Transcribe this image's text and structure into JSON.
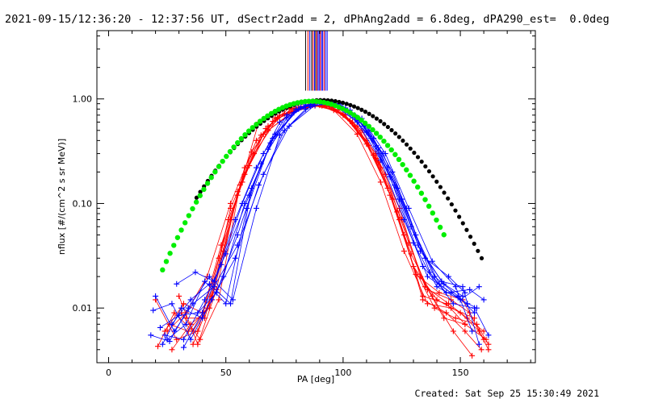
{
  "header": {
    "title": "2021-09-15/12:36:20 - 12:37:56 UT, dSectr2add = 2, dPhAng2add = 6.8deg, dPA290_est=  0.0deg"
  },
  "footer": {
    "created": "Created: Sat Sep 25 15:30:49 2021"
  },
  "chart_data": {
    "type": "line",
    "xlabel": "PA [deg]",
    "ylabel": "nflux [#/(cm^2 s sr MeV)]",
    "xlim": [
      -5,
      182
    ],
    "ylim": [
      0.003,
      4.5
    ],
    "yscale": "log",
    "x_ticks": [
      0,
      50,
      100,
      150
    ],
    "x_tick_labels": [
      "0",
      "50",
      "100",
      "150"
    ],
    "y_ticks": [
      0.01,
      0.1,
      1.0
    ],
    "y_tick_labels": [
      "0.01",
      "0.10",
      "1.00"
    ],
    "grid": false,
    "colors": {
      "red": "#ff0000",
      "blue": "#0000ff",
      "green": "#00ee00",
      "black": "#000000"
    },
    "vertical_markers": {
      "y_range": [
        1.2,
        4.5
      ],
      "lines": [
        {
          "x": 84.0,
          "color": "black"
        },
        {
          "x": 85.0,
          "color": "red"
        },
        {
          "x": 85.8,
          "color": "blue"
        },
        {
          "x": 86.6,
          "color": "black"
        },
        {
          "x": 87.2,
          "color": "red"
        },
        {
          "x": 87.8,
          "color": "blue"
        },
        {
          "x": 88.3,
          "color": "black"
        },
        {
          "x": 88.8,
          "color": "red"
        },
        {
          "x": 89.3,
          "color": "blue"
        },
        {
          "x": 89.8,
          "color": "blue"
        },
        {
          "x": 90.3,
          "color": "red"
        },
        {
          "x": 90.8,
          "color": "blue"
        },
        {
          "x": 91.3,
          "color": "blue"
        },
        {
          "x": 91.9,
          "color": "red"
        },
        {
          "x": 92.5,
          "color": "blue"
        },
        {
          "x": 93.2,
          "color": "blue"
        }
      ]
    },
    "series": [
      {
        "color": "red",
        "x": [
          21,
          28,
          36,
          44,
          55,
          64,
          74,
          86,
          94,
          104,
          114,
          124,
          134,
          144,
          152
        ],
        "values": [
          0.0043,
          0.009,
          0.006,
          0.012,
          0.12,
          0.6,
          0.79,
          0.85,
          0.87,
          0.58,
          0.27,
          0.07,
          0.013,
          0.011,
          0.007
        ]
      },
      {
        "color": "red",
        "x": [
          24,
          32,
          40,
          48,
          58,
          68,
          80,
          90,
          100,
          110,
          120,
          130,
          140,
          150,
          158
        ],
        "values": [
          0.006,
          0.011,
          0.009,
          0.04,
          0.19,
          0.5,
          0.8,
          0.87,
          0.7,
          0.4,
          0.12,
          0.025,
          0.012,
          0.009,
          0.006
        ]
      },
      {
        "color": "red",
        "x": [
          30,
          38,
          46,
          55,
          66,
          78,
          88,
          98,
          108,
          118,
          128,
          136,
          146,
          154,
          162
        ],
        "values": [
          0.013,
          0.0045,
          0.015,
          0.13,
          0.46,
          0.74,
          0.86,
          0.79,
          0.5,
          0.19,
          0.042,
          0.015,
          0.012,
          0.009,
          0.004
        ]
      },
      {
        "color": "red",
        "x": [
          27,
          35,
          43,
          52,
          62,
          72,
          84,
          93,
          103,
          113,
          123,
          131,
          141,
          151,
          160
        ],
        "values": [
          0.004,
          0.007,
          0.01,
          0.09,
          0.3,
          0.65,
          0.84,
          0.87,
          0.62,
          0.29,
          0.083,
          0.021,
          0.014,
          0.012,
          0.005
        ]
      },
      {
        "color": "red",
        "x": [
          33,
          41,
          49,
          58,
          68,
          78,
          88,
          96,
          106,
          116,
          126,
          134,
          144,
          152,
          159
        ],
        "values": [
          0.008,
          0.008,
          0.035,
          0.22,
          0.55,
          0.8,
          0.88,
          0.83,
          0.55,
          0.22,
          0.05,
          0.012,
          0.009,
          0.006,
          0.004
        ]
      },
      {
        "color": "red",
        "x": [
          36,
          44,
          52,
          61,
          71,
          82,
          92,
          101,
          111,
          121,
          130,
          139,
          148,
          157,
          162
        ],
        "values": [
          0.0045,
          0.013,
          0.07,
          0.31,
          0.66,
          0.85,
          0.88,
          0.7,
          0.36,
          0.11,
          0.025,
          0.01,
          0.008,
          0.007,
          0.0045
        ]
      },
      {
        "color": "red",
        "x": [
          20,
          29,
          38,
          47,
          57,
          67,
          77,
          87,
          96,
          106,
          116,
          126,
          136,
          146,
          156
        ],
        "values": [
          0.012,
          0.005,
          0.006,
          0.03,
          0.16,
          0.52,
          0.82,
          0.87,
          0.78,
          0.46,
          0.16,
          0.035,
          0.011,
          0.01,
          0.008
        ]
      },
      {
        "color": "red",
        "x": [
          26,
          34,
          42,
          51,
          60,
          70,
          80,
          91,
          100,
          110,
          119,
          129,
          138,
          147,
          155
        ],
        "values": [
          0.007,
          0.006,
          0.01,
          0.07,
          0.23,
          0.61,
          0.8,
          0.86,
          0.72,
          0.37,
          0.14,
          0.033,
          0.013,
          0.006,
          0.0035
        ]
      },
      {
        "color": "red",
        "x": [
          25,
          33,
          42,
          52,
          63,
          73,
          85,
          94,
          104,
          114,
          124,
          133,
          143,
          152,
          161
        ],
        "values": [
          0.006,
          0.009,
          0.02,
          0.1,
          0.4,
          0.7,
          0.85,
          0.87,
          0.6,
          0.3,
          0.09,
          0.02,
          0.008,
          0.007,
          0.005
        ]
      },
      {
        "color": "red",
        "x": [
          31,
          39,
          47,
          56,
          65,
          75,
          86,
          95,
          105,
          115,
          125,
          135,
          145,
          153,
          160
        ],
        "values": [
          0.009,
          0.005,
          0.012,
          0.15,
          0.45,
          0.72,
          0.85,
          0.84,
          0.55,
          0.25,
          0.07,
          0.016,
          0.011,
          0.008,
          0.006
        ]
      },
      {
        "color": "blue",
        "x": [
          18,
          26,
          34,
          43,
          53,
          63,
          73,
          84,
          93,
          103,
          113,
          123,
          133,
          143,
          151
        ],
        "values": [
          0.0055,
          0.0048,
          0.01,
          0.02,
          0.012,
          0.09,
          0.45,
          0.8,
          0.93,
          0.78,
          0.42,
          0.14,
          0.035,
          0.017,
          0.013
        ]
      },
      {
        "color": "blue",
        "x": [
          22,
          30,
          38,
          46,
          55,
          65,
          76,
          87,
          96,
          106,
          116,
          126,
          136,
          146,
          153
        ],
        "values": [
          0.0065,
          0.0085,
          0.009,
          0.014,
          0.05,
          0.24,
          0.66,
          0.92,
          0.88,
          0.6,
          0.26,
          0.07,
          0.02,
          0.014,
          0.011
        ]
      },
      {
        "color": "blue",
        "x": [
          25,
          33,
          41,
          50,
          59,
          69,
          80,
          90,
          100,
          110,
          120,
          130,
          140,
          150,
          157
        ],
        "values": [
          0.005,
          0.007,
          0.018,
          0.011,
          0.09,
          0.38,
          0.8,
          0.93,
          0.8,
          0.48,
          0.18,
          0.042,
          0.016,
          0.012,
          0.01
        ]
      },
      {
        "color": "blue",
        "x": [
          29,
          37,
          45,
          54,
          63,
          73,
          84,
          94,
          104,
          114,
          124,
          134,
          144,
          154,
          160
        ],
        "values": [
          0.017,
          0.022,
          0.018,
          0.07,
          0.22,
          0.6,
          0.88,
          0.92,
          0.7,
          0.35,
          0.11,
          0.025,
          0.014,
          0.015,
          0.012
        ]
      },
      {
        "color": "blue",
        "x": [
          20,
          28,
          36,
          45,
          55,
          66,
          77,
          88,
          98,
          108,
          118,
          128,
          138,
          148,
          155
        ],
        "values": [
          0.013,
          0.006,
          0.011,
          0.016,
          0.04,
          0.19,
          0.55,
          0.87,
          0.9,
          0.65,
          0.3,
          0.09,
          0.028,
          0.016,
          0.006
        ]
      },
      {
        "color": "blue",
        "x": [
          23,
          31,
          40,
          49,
          58,
          68,
          79,
          89,
          99,
          109,
          119,
          129,
          139,
          149,
          156
        ],
        "values": [
          0.0045,
          0.01,
          0.008,
          0.02,
          0.1,
          0.33,
          0.74,
          0.93,
          0.86,
          0.55,
          0.22,
          0.06,
          0.02,
          0.013,
          0.009
        ]
      },
      {
        "color": "blue",
        "x": [
          27,
          35,
          43,
          52,
          61,
          71,
          82,
          92,
          102,
          112,
          122,
          132,
          142,
          151,
          158
        ],
        "values": [
          0.007,
          0.012,
          0.017,
          0.011,
          0.14,
          0.46,
          0.84,
          0.94,
          0.76,
          0.42,
          0.15,
          0.04,
          0.018,
          0.016,
          0.0045
        ]
      },
      {
        "color": "blue",
        "x": [
          32,
          40,
          48,
          57,
          66,
          76,
          87,
          97,
          107,
          117,
          127,
          137,
          147,
          156,
          162
        ],
        "values": [
          0.0042,
          0.009,
          0.026,
          0.1,
          0.3,
          0.7,
          0.92,
          0.9,
          0.62,
          0.3,
          0.09,
          0.022,
          0.011,
          0.01,
          0.0055
        ]
      },
      {
        "color": "blue",
        "x": [
          19,
          27,
          35,
          44,
          54,
          64,
          75,
          86,
          95,
          105,
          115,
          125,
          135,
          145,
          152
        ],
        "values": [
          0.0095,
          0.011,
          0.005,
          0.012,
          0.03,
          0.15,
          0.5,
          0.85,
          0.92,
          0.7,
          0.34,
          0.11,
          0.03,
          0.02,
          0.014
        ]
      },
      {
        "color": "blue",
        "x": [
          24,
          32,
          41,
          50,
          60,
          70,
          81,
          91,
          101,
          111,
          121,
          131,
          141,
          150,
          158
        ],
        "values": [
          0.0055,
          0.005,
          0.012,
          0.033,
          0.12,
          0.42,
          0.8,
          0.94,
          0.82,
          0.5,
          0.2,
          0.05,
          0.017,
          0.012,
          0.016
        ]
      }
    ],
    "green_fit": {
      "peak_x": 86.5,
      "peak_y": 0.95,
      "sigma": 23.3,
      "x_range": [
        23,
        143
      ],
      "step": 1.6
    },
    "black_fit": {
      "peak_x": 91.0,
      "peak_y": 0.975,
      "sigma": 25.8,
      "x_range": [
        37.5,
        160
      ],
      "step": 1.6
    }
  }
}
